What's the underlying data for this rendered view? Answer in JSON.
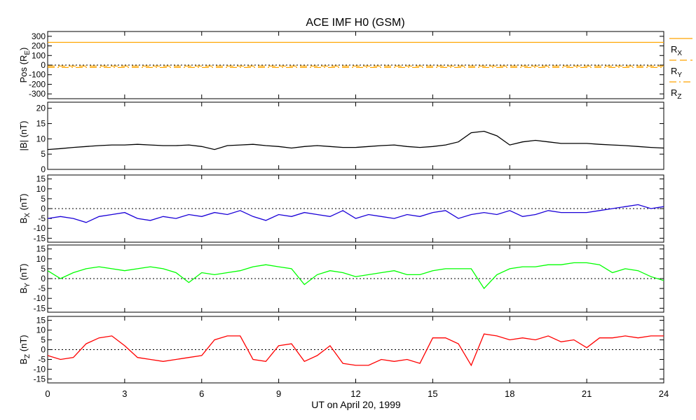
{
  "chart_data": {
    "type": "line",
    "title": "ACE IMF H0 (GSM)",
    "xlabel": "UT on April 20, 1999",
    "xlim": [
      0,
      24
    ],
    "x_ticks": [
      0,
      3,
      6,
      9,
      12,
      15,
      18,
      21,
      24
    ],
    "x_tick_labels": [
      "0",
      "3",
      "6",
      "9",
      "12",
      "15",
      "18",
      "21",
      "24"
    ],
    "panels": [
      {
        "id": "pos",
        "ylabel": "Pos (R",
        "ylabel_sub": "E",
        "ylabel_tail": ")",
        "ylim": [
          -350,
          350
        ],
        "ticks": [
          -300,
          -200,
          -100,
          0,
          100,
          200,
          300
        ],
        "zero_line": true,
        "series": [
          {
            "name": "RX",
            "color": "#ffa500",
            "style": "solid",
            "x": [
              0,
              4,
              8,
              12,
              16,
              20,
              24
            ],
            "y": [
              237,
              237,
              237,
              237,
              237,
              237,
              237
            ]
          },
          {
            "name": "RY",
            "color": "#ffa500",
            "style": "dashed",
            "x": [
              0,
              4,
              8,
              12,
              16,
              20,
              24
            ],
            "y": [
              -10,
              -10,
              -10,
              -10,
              -10,
              -10,
              -10
            ]
          },
          {
            "name": "RZ",
            "color": "#ffa500",
            "style": "dashdot",
            "x": [
              0,
              4,
              8,
              12,
              16,
              20,
              24
            ],
            "y": [
              -25,
              -25,
              -25,
              -25,
              -25,
              -25,
              -25
            ]
          }
        ],
        "legend": [
          {
            "main": "R",
            "sub": "X",
            "style": "solid"
          },
          {
            "main": "R",
            "sub": "Y",
            "style": "dashed"
          },
          {
            "main": "R",
            "sub": "Z",
            "style": "dashdot"
          }
        ]
      },
      {
        "id": "bmag",
        "ylabel": "|B| (nT)",
        "ylabel_sub": "",
        "ylabel_tail": "",
        "ylim": [
          0,
          22
        ],
        "ticks": [
          0,
          5,
          10,
          15,
          20
        ],
        "zero_line": false,
        "series": [
          {
            "name": "|B|",
            "color": "#000000",
            "style": "solid",
            "x": [
              0,
              0.5,
              1,
              1.5,
              2,
              2.5,
              3,
              3.5,
              4,
              4.5,
              5,
              5.5,
              6,
              6.5,
              7,
              7.5,
              8,
              8.5,
              9,
              9.5,
              10,
              10.5,
              11,
              11.5,
              12,
              12.5,
              13,
              13.5,
              14,
              14.5,
              15,
              15.5,
              16,
              16.5,
              17,
              17.5,
              18,
              18.5,
              19,
              19.5,
              20,
              20.5,
              21,
              21.5,
              22,
              22.5,
              23,
              23.5,
              24
            ],
            "y": [
              6.5,
              6.8,
              7.2,
              7.5,
              7.8,
              8,
              8,
              8.2,
              8,
              7.8,
              7.8,
              8,
              7.5,
              6.5,
              7.8,
              8,
              8.2,
              7.8,
              7.5,
              7,
              7.5,
              7.8,
              7.5,
              7.2,
              7.2,
              7.5,
              7.8,
              8,
              7.5,
              7.2,
              7.5,
              8,
              9,
              12,
              12.5,
              11,
              8,
              9,
              9.5,
              9,
              8.5,
              8.5,
              8.5,
              8.2,
              8,
              7.8,
              7.5,
              7.2,
              7
            ]
          }
        ]
      },
      {
        "id": "bx",
        "ylabel": "B",
        "ylabel_sub": "X",
        "ylabel_tail": " (nT)",
        "ylim": [
          -17,
          17
        ],
        "ticks": [
          -15,
          -10,
          -5,
          0,
          5,
          10,
          15
        ],
        "zero_line": true,
        "series": [
          {
            "name": "BX",
            "color": "#1a00d8",
            "style": "solid",
            "x": [
              0,
              0.5,
              1,
              1.5,
              2,
              2.5,
              3,
              3.5,
              4,
              4.5,
              5,
              5.5,
              6,
              6.5,
              7,
              7.5,
              8,
              8.5,
              9,
              9.5,
              10,
              10.5,
              11,
              11.5,
              12,
              12.5,
              13,
              13.5,
              14,
              14.5,
              15,
              15.5,
              16,
              16.5,
              17,
              17.5,
              18,
              18.5,
              19,
              19.5,
              20,
              20.5,
              21,
              21.5,
              22,
              22.5,
              23,
              23.5,
              24
            ],
            "y": [
              -5,
              -4,
              -5,
              -7,
              -4,
              -3,
              -2,
              -5,
              -6,
              -4,
              -5,
              -3,
              -4,
              -2,
              -3,
              -1,
              -4,
              -6,
              -3,
              -4,
              -2,
              -3,
              -4,
              -1,
              -5,
              -3,
              -4,
              -5,
              -3,
              -4,
              -2,
              -1,
              -5,
              -3,
              -2,
              -3,
              -1,
              -4,
              -3,
              -1,
              -2,
              -2,
              -2,
              -1,
              0,
              1,
              2,
              0,
              1
            ]
          }
        ]
      },
      {
        "id": "by",
        "ylabel": "B",
        "ylabel_sub": "Y",
        "ylabel_tail": " (nT)",
        "ylim": [
          -17,
          17
        ],
        "ticks": [
          -15,
          -10,
          -5,
          0,
          5,
          10,
          15
        ],
        "zero_line": true,
        "series": [
          {
            "name": "BY",
            "color": "#00ff00",
            "style": "solid",
            "x": [
              0,
              0.5,
              1,
              1.5,
              2,
              2.5,
              3,
              3.5,
              4,
              4.5,
              5,
              5.5,
              6,
              6.5,
              7,
              7.5,
              8,
              8.5,
              9,
              9.5,
              10,
              10.5,
              11,
              11.5,
              12,
              12.5,
              13,
              13.5,
              14,
              14.5,
              15,
              15.5,
              16,
              16.5,
              17,
              17.5,
              18,
              18.5,
              19,
              19.5,
              20,
              20.5,
              21,
              21.5,
              22,
              22.5,
              23,
              23.5,
              24
            ],
            "y": [
              4,
              0,
              3,
              5,
              6,
              5,
              4,
              5,
              6,
              5,
              3,
              -2,
              3,
              2,
              3,
              4,
              6,
              7,
              6,
              5,
              -3,
              2,
              4,
              3,
              1,
              2,
              3,
              4,
              2,
              2,
              4,
              5,
              5,
              5,
              -5,
              2,
              5,
              6,
              6,
              7,
              7,
              8,
              8,
              7,
              3,
              5,
              4,
              1,
              -1
            ]
          }
        ]
      },
      {
        "id": "bz",
        "ylabel": "B",
        "ylabel_sub": "Z",
        "ylabel_tail": " (nT)",
        "ylim": [
          -17,
          17
        ],
        "ticks": [
          -15,
          -10,
          -5,
          0,
          5,
          10,
          15
        ],
        "zero_line": true,
        "series": [
          {
            "name": "BZ",
            "color": "#ff0000",
            "style": "solid",
            "x": [
              0,
              0.5,
              1,
              1.5,
              2,
              2.5,
              3,
              3.5,
              4,
              4.5,
              5,
              5.5,
              6,
              6.5,
              7,
              7.5,
              8,
              8.5,
              9,
              9.5,
              10,
              10.5,
              11,
              11.5,
              12,
              12.5,
              13,
              13.5,
              14,
              14.5,
              15,
              15.5,
              16,
              16.5,
              17,
              17.5,
              18,
              18.5,
              19,
              19.5,
              20,
              20.5,
              21,
              21.5,
              22,
              22.5,
              23,
              23.5,
              24
            ],
            "y": [
              -3,
              -5,
              -4,
              3,
              6,
              7,
              2,
              -4,
              -5,
              -6,
              -5,
              -4,
              -3,
              5,
              7,
              7,
              -5,
              -6,
              2,
              3,
              -6,
              -3,
              2,
              -7,
              -8,
              -8,
              -5,
              -6,
              -5,
              -7,
              6,
              6,
              3,
              -8,
              8,
              7,
              5,
              6,
              5,
              7,
              4,
              5,
              1,
              6,
              6,
              7,
              6,
              7,
              7
            ]
          }
        ]
      }
    ]
  }
}
